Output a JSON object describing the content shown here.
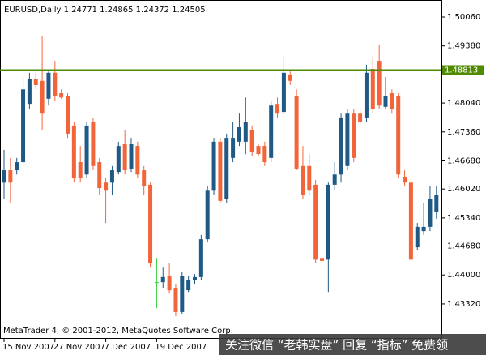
{
  "chart_data": {
    "type": "candlestick",
    "title": "EURUSD,Daily  1.24771 1.24865 1.24372 1.24505",
    "categories": [
      "15 Nov 2007",
      null,
      null,
      null,
      null,
      null,
      null,
      null,
      "27 Nov 2007",
      null,
      null,
      null,
      null,
      null,
      null,
      null,
      "7 Dec 2007",
      null,
      null,
      null,
      null,
      null,
      null,
      null,
      "19 Dec 2007",
      null,
      null,
      null,
      null,
      null,
      null,
      null,
      null,
      null,
      null,
      null,
      null,
      null,
      null,
      null,
      null,
      null,
      null,
      null,
      null,
      null,
      null,
      null,
      null,
      null,
      null,
      null,
      null,
      null,
      null,
      null,
      null,
      null,
      null,
      null,
      null,
      null,
      null,
      null,
      null,
      null,
      null,
      null,
      null
    ],
    "open": [
      1.4617,
      1.4646,
      1.4646,
      1.4665,
      1.4802,
      1.4861,
      1.4856,
      1.4814,
      1.4875,
      1.4827,
      1.4821,
      1.4751,
      1.4665,
      1.4636,
      1.476,
      1.4665,
      1.4617,
      1.4617,
      1.4642,
      1.4707,
      1.465,
      1.4703,
      1.4646,
      1.4612,
      1.4383,
      1.4383,
      1.4398,
      1.437,
      1.4313,
      1.4364,
      1.4389,
      1.4395,
      1.4484,
      1.4598,
      1.4713,
      1.4579,
      1.4675,
      1.4713,
      1.4713,
      1.4741,
      1.4703,
      1.4703,
      1.4675,
      1.4802,
      1.4783,
      1.4871,
      1.4821,
      1.4656,
      1.4656,
      1.4612,
      1.444,
      1.4436,
      1.4612,
      1.4636,
      1.4656,
      1.4779,
      1.4779,
      1.477,
      1.4884,
      1.4903,
      1.4795,
      1.4827,
      1.4821,
      1.4631,
      1.4617,
      1.4465,
      1.4503,
      1.4513,
      1.4547
    ],
    "high": [
      1.4694,
      1.4675,
      1.4675,
      1.4865,
      1.4875,
      1.4875,
      1.496,
      1.4878,
      1.4903,
      1.4836,
      1.4827,
      1.476,
      1.4703,
      1.476,
      1.477,
      1.4675,
      1.4627,
      1.4656,
      1.4713,
      1.4741,
      1.4722,
      1.4713,
      1.4656,
      1.4617,
      1.444,
      1.4417,
      1.4427,
      1.4379,
      1.4408,
      1.4398,
      1.4402,
      1.4494,
      1.4608,
      1.4722,
      1.4722,
      1.4732,
      1.476,
      1.4779,
      1.4817,
      1.4751,
      1.4707,
      1.4713,
      1.4808,
      1.4817,
      1.4913,
      1.4878,
      1.4836,
      1.4703,
      1.4684,
      1.4623,
      1.4475,
      1.4617,
      1.4665,
      1.4779,
      1.4789,
      1.4789,
      1.4789,
      1.4894,
      1.4913,
      1.4941,
      1.4865,
      1.4836,
      1.4827,
      1.4646,
      1.4627,
      1.4522,
      1.457,
      1.4608,
      1.4608
    ],
    "low": [
      1.4579,
      1.457,
      1.4636,
      1.4656,
      1.4789,
      1.4836,
      1.4741,
      1.4798,
      1.4808,
      1.4814,
      1.4722,
      1.4617,
      1.4617,
      1.4627,
      1.4646,
      1.4589,
      1.4522,
      1.4589,
      1.4636,
      1.4636,
      1.4642,
      1.4627,
      1.4589,
      1.4417,
      1.4322,
      1.437,
      1.4356,
      1.4303,
      1.4307,
      1.436,
      1.4379,
      1.4389,
      1.4478,
      1.4589,
      1.457,
      1.457,
      1.4665,
      1.4703,
      1.4684,
      1.468,
      1.468,
      1.4656,
      1.4665,
      1.477,
      1.4776,
      1.4846,
      1.4646,
      1.4579,
      1.4589,
      1.4427,
      1.4417,
      1.436,
      1.4598,
      1.4617,
      1.4646,
      1.4665,
      1.4751,
      1.476,
      1.4779,
      1.4789,
      1.4789,
      1.4779,
      1.4627,
      1.4608,
      1.4433,
      1.4459,
      1.4494,
      1.4503,
      1.4532
    ],
    "close": [
      1.4646,
      1.4617,
      1.4665,
      1.4836,
      1.4861,
      1.4846,
      1.4779,
      1.4875,
      1.4821,
      1.4817,
      1.4732,
      1.4627,
      1.4627,
      1.4751,
      1.4656,
      1.4604,
      1.4598,
      1.4646,
      1.4703,
      1.4646,
      1.4707,
      1.4636,
      1.4608,
      1.4427,
      1.4383,
      1.4395,
      1.4364,
      1.4313,
      1.4398,
      1.4389,
      1.4395,
      1.4484,
      1.4598,
      1.4713,
      1.4574,
      1.4722,
      1.4722,
      1.4747,
      1.476,
      1.4688,
      1.4684,
      1.4665,
      1.4798,
      1.4779,
      1.4875,
      1.4856,
      1.465,
      1.4589,
      1.4598,
      1.4436,
      1.4433,
      1.4612,
      1.4636,
      1.477,
      1.4779,
      1.4675,
      1.476,
      1.4875,
      1.4789,
      1.4798,
      1.4821,
      1.4789,
      1.4636,
      1.4617,
      1.4436,
      1.4513,
      1.4513,
      1.4579,
      1.4589
    ],
    "up_color": "#1f5a87",
    "down_color": "#f2653a",
    "doji_color": "#33cc33",
    "ylim": [
      1.425,
      1.5046
    ],
    "yticks": [
      {
        "value": 1.5006,
        "label": "1.50060"
      },
      {
        "value": 1.4938,
        "label": "1.49380"
      },
      {
        "value": 1.4804,
        "label": "1.48040"
      },
      {
        "value": 1.4736,
        "label": "1.47360"
      },
      {
        "value": 1.4668,
        "label": "1.46680"
      },
      {
        "value": 1.4602,
        "label": "1.46020"
      },
      {
        "value": 1.4534,
        "label": "1.45340"
      },
      {
        "value": 1.4468,
        "label": "1.44680"
      },
      {
        "value": 1.44,
        "label": "1.44000"
      },
      {
        "value": 1.4332,
        "label": "1.43320"
      }
    ],
    "hline": {
      "value": 1.48813,
      "color": "#4f8a00"
    },
    "copyright": "MetaTrader 4, © 2001-2012, MetaQuotes Software Corp.",
    "watermark": "关注微信 “老韩实盘” 回复 “指标” 免费领"
  }
}
